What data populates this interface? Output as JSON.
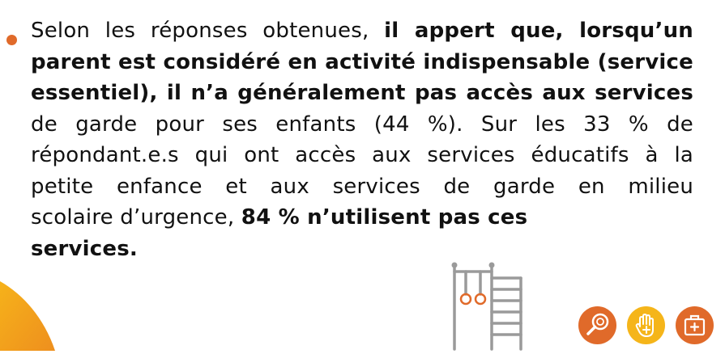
{
  "paragraph": {
    "line1": [
      "Selon les réponses obtenues, ",
      "il appert que, lorsqu’un"
    ],
    "line2": "parent est considéré en activité indispensable (service",
    "line3": "essentiel), il n’a généralement pas accès aux services",
    "line4": "de garde pour ses enfants (44 %). Sur les 33 % de",
    "line5": "répondant.e.s qui ont accès aux services éducatifs à la",
    "line6": "petite enfance et aux services de garde en milieu",
    "line7": [
      "scolaire d’urgence, ",
      "84 % n’utilisent pas ces"
    ],
    "line8": "services."
  },
  "icons": {
    "bullet": "bullet-dot-icon",
    "gym": "climbing-frame-rings-icon",
    "search": "magnifier-icon",
    "hand": "hand-plus-icon",
    "kit": "first-aid-kit-icon"
  },
  "colors": {
    "accent_orange": "#e06a2a",
    "accent_yellow": "#f5b51a",
    "text": "#111111"
  }
}
